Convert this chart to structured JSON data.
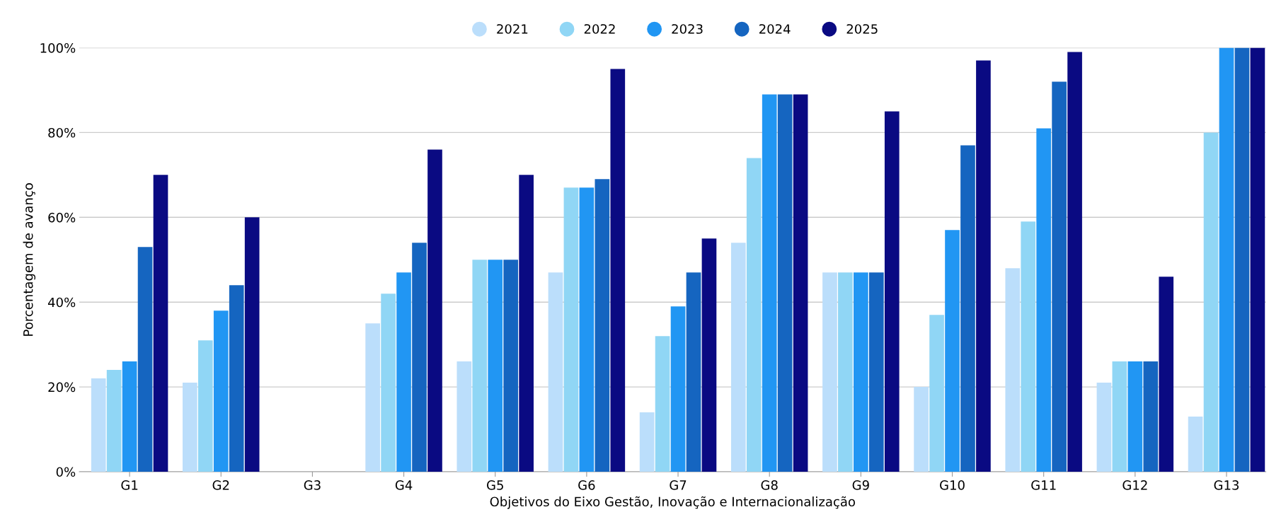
{
  "chart_data": {
    "type": "bar",
    "xlabel": "Objetivos do Eixo Gestão, Inovação e Internacionalização",
    "ylabel": "Porcentagem de avanço",
    "categories": [
      "G1",
      "G2",
      "G3",
      "G4",
      "G5",
      "G6",
      "G7",
      "G8",
      "G9",
      "G10",
      "G11",
      "G12",
      "G13"
    ],
    "series": [
      {
        "name": "2021",
        "color": "#bbdefb",
        "values": [
          22,
          21,
          0,
          35,
          26,
          47,
          14,
          54,
          47,
          20,
          48,
          21,
          13
        ]
      },
      {
        "name": "2022",
        "color": "#90d6f5",
        "values": [
          24,
          31,
          0,
          42,
          50,
          67,
          32,
          74,
          47,
          37,
          59,
          26,
          80
        ]
      },
      {
        "name": "2023",
        "color": "#2196f3",
        "values": [
          26,
          38,
          0,
          47,
          50,
          67,
          39,
          89,
          47,
          57,
          81,
          26,
          100
        ]
      },
      {
        "name": "2024",
        "color": "#1565c0",
        "values": [
          53,
          44,
          0,
          54,
          50,
          69,
          47,
          89,
          47,
          77,
          92,
          26,
          100
        ]
      },
      {
        "name": "2025",
        "color": "#0a0a82",
        "values": [
          70,
          60,
          0,
          76,
          70,
          95,
          55,
          89,
          85,
          97,
          99,
          46,
          100
        ]
      }
    ],
    "ylim": [
      0,
      100
    ],
    "yticks": [
      {
        "value": 0,
        "label": "0%"
      },
      {
        "value": 20,
        "label": "20%"
      },
      {
        "value": 40,
        "label": "40%"
      },
      {
        "value": 60,
        "label": "60%"
      },
      {
        "value": 80,
        "label": "80%"
      },
      {
        "value": 100,
        "label": "100%"
      }
    ],
    "grid": "y",
    "legend": "top"
  }
}
